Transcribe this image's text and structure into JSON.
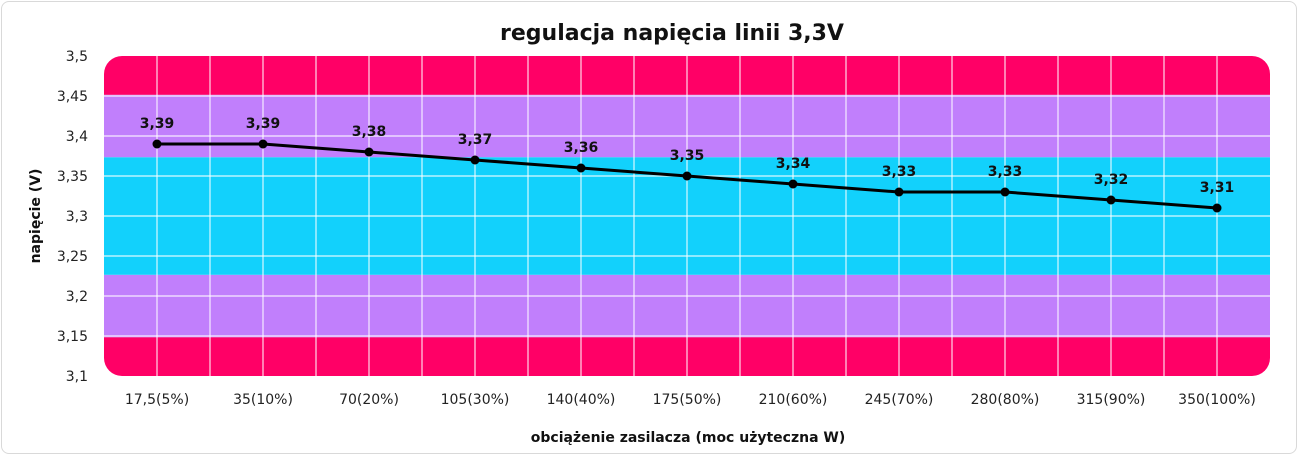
{
  "chart_data": {
    "type": "line",
    "title": "regulacja napięcia linii 3,3V",
    "xlabel": "obciążenie zasilacza (moc użyteczna W)",
    "ylabel": "napięcie (V)",
    "categories": [
      "17,5(5%)",
      "35(10%)",
      "70(20%)",
      "105(30%)",
      "140(40%)",
      "175(50%)",
      "210(60%)",
      "245(70%)",
      "280(80%)",
      "315(90%)",
      "350(100%)"
    ],
    "series": [
      {
        "values": [
          3.39,
          3.39,
          3.38,
          3.37,
          3.36,
          3.35,
          3.34,
          3.33,
          3.33,
          3.32,
          3.31
        ],
        "labels": [
          "3,39",
          "3,39",
          "3,38",
          "3,37",
          "3,36",
          "3,35",
          "3,34",
          "3,33",
          "3,33",
          "3,32",
          "3,31"
        ],
        "color": "#000000"
      }
    ],
    "ylim": [
      3.1,
      3.5
    ],
    "yticks": [
      {
        "value": 3.1,
        "label": "3,1"
      },
      {
        "value": 3.15,
        "label": "3,15"
      },
      {
        "value": 3.2,
        "label": "3,2"
      },
      {
        "value": 3.25,
        "label": "3,25"
      },
      {
        "value": 3.3,
        "label": "3,3"
      },
      {
        "value": 3.35,
        "label": "3,35"
      },
      {
        "value": 3.4,
        "label": "3,4"
      },
      {
        "value": 3.45,
        "label": "3,45"
      },
      {
        "value": 3.5,
        "label": "3,5"
      }
    ],
    "bands": [
      {
        "from": 3.1,
        "to": 3.1485,
        "color": "#ff0066"
      },
      {
        "from": 3.1485,
        "to": 3.2265,
        "color": "#c17ffc"
      },
      {
        "from": 3.2265,
        "to": 3.3735,
        "color": "#12d1fc"
      },
      {
        "from": 3.3735,
        "to": 3.4515,
        "color": "#c17ffc"
      },
      {
        "from": 3.4515,
        "to": 3.5,
        "color": "#ff0066"
      }
    ],
    "grid": true,
    "legend": "none"
  }
}
